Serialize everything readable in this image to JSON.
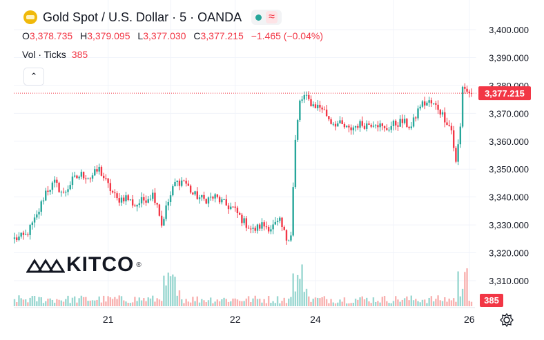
{
  "header": {
    "symbol_title": "Gold Spot / U.S. Dollar · 5 · OANDA",
    "status_icon": "green-dot-icon",
    "wave_glyph": "≈"
  },
  "ohlc": {
    "o_label": "O",
    "o_value": "3,378.735",
    "h_label": "H",
    "h_value": "3,379.095",
    "l_label": "L",
    "l_value": "3,377.030",
    "c_label": "C",
    "c_value": "3,377.215",
    "change": "−1.465 (−0.04%)"
  },
  "volume": {
    "label": "Vol · Ticks",
    "value": "385"
  },
  "collapse_glyph": "⌃",
  "brand": {
    "name": "KITCO",
    "mark": "®"
  },
  "colors": {
    "up": "#26a69a",
    "down": "#f23645",
    "grid": "#f0f3fa",
    "text": "#131722"
  },
  "chart_data": {
    "type": "candlestick",
    "title": "Gold Spot / U.S. Dollar · 5 · OANDA",
    "ylim": [
      3302,
      3405
    ],
    "y_ticks": [
      "3,400.000",
      "3,390.000",
      "3,380.000",
      "3,370.000",
      "3,360.000",
      "3,350.000",
      "3,340.000",
      "3,330.000",
      "3,320.000",
      "3,310.000"
    ],
    "y_tick_values": [
      3400,
      3390,
      3380,
      3370,
      3360,
      3350,
      3340,
      3330,
      3320,
      3310
    ],
    "x_ticks": [
      "21",
      "22",
      "24",
      "26"
    ],
    "x_tick_index": [
      42,
      99,
      135,
      204
    ],
    "last_price": 3377.215,
    "last_price_label": "3,377.215",
    "volume_label": "385",
    "n_candles": 206,
    "anchors": [
      [
        0,
        3325
      ],
      [
        5,
        3326
      ],
      [
        10,
        3333
      ],
      [
        14,
        3342
      ],
      [
        18,
        3345
      ],
      [
        22,
        3341
      ],
      [
        26,
        3346
      ],
      [
        30,
        3348
      ],
      [
        34,
        3347
      ],
      [
        38,
        3350
      ],
      [
        42,
        3344
      ],
      [
        46,
        3339
      ],
      [
        50,
        3340
      ],
      [
        54,
        3337
      ],
      [
        58,
        3339
      ],
      [
        62,
        3341
      ],
      [
        64,
        3338
      ],
      [
        66,
        3330
      ],
      [
        68,
        3336
      ],
      [
        72,
        3345
      ],
      [
        76,
        3346
      ],
      [
        80,
        3341
      ],
      [
        85,
        3339
      ],
      [
        90,
        3340
      ],
      [
        95,
        3337
      ],
      [
        98,
        3336
      ],
      [
        103,
        3331
      ],
      [
        107,
        3328
      ],
      [
        111,
        3330
      ],
      [
        115,
        3329
      ],
      [
        119,
        3331
      ],
      [
        122,
        3325
      ],
      [
        124,
        3327
      ],
      [
        126,
        3360
      ],
      [
        128,
        3374
      ],
      [
        130,
        3376
      ],
      [
        134,
        3373
      ],
      [
        138,
        3372
      ],
      [
        142,
        3367
      ],
      [
        146,
        3366
      ],
      [
        150,
        3364
      ],
      [
        154,
        3366
      ],
      [
        158,
        3366
      ],
      [
        162,
        3367
      ],
      [
        166,
        3364
      ],
      [
        170,
        3366
      ],
      [
        174,
        3367
      ],
      [
        178,
        3365
      ],
      [
        182,
        3373
      ],
      [
        186,
        3374
      ],
      [
        190,
        3372
      ],
      [
        194,
        3367
      ],
      [
        196,
        3364
      ],
      [
        198,
        3352
      ],
      [
        200,
        3365
      ],
      [
        201,
        3380
      ],
      [
        203,
        3378
      ],
      [
        205,
        3376
      ],
      [
        207,
        3377
      ]
    ],
    "volumes_hint": "spikes near index 70, 128, 201; otherwise low"
  }
}
